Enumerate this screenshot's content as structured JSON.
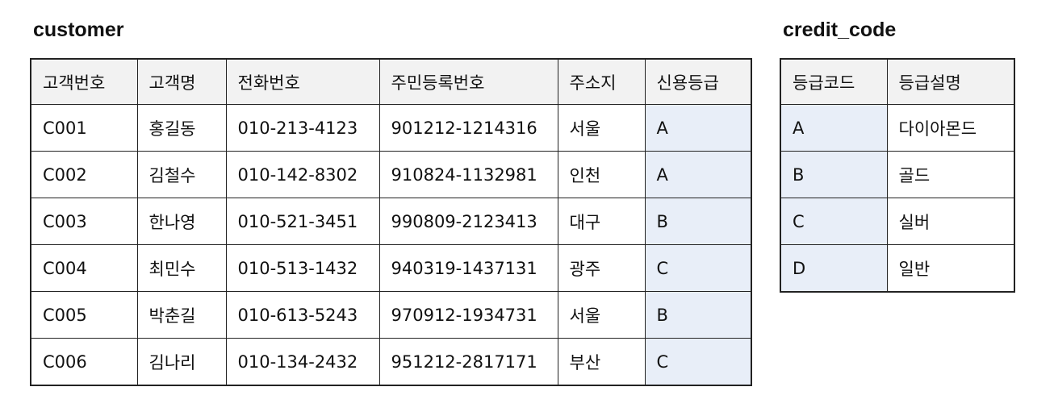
{
  "customer": {
    "title": "customer",
    "columns": [
      "고객번호",
      "고객명",
      "전화번호",
      "주민등록번호",
      "주소지",
      "신용등급"
    ],
    "rows": [
      [
        "C001",
        "홍길동",
        "010-213-4123",
        "901212-1214316",
        "서울",
        "A"
      ],
      [
        "C002",
        "김철수",
        "010-142-8302",
        "910824-1132981",
        "인천",
        "A"
      ],
      [
        "C003",
        "한나영",
        "010-521-3451",
        "990809-2123413",
        "대구",
        "B"
      ],
      [
        "C004",
        "최민수",
        "010-513-1432",
        "940319-1437131",
        "광주",
        "C"
      ],
      [
        "C005",
        "박춘길",
        "010-613-5243",
        "970912-1934731",
        "서울",
        "B"
      ],
      [
        "C006",
        "김나리",
        "010-134-2432",
        "951212-2817171",
        "부산",
        "C"
      ]
    ]
  },
  "credit_code": {
    "title": "credit_code",
    "columns": [
      "등급코드",
      "등급설명"
    ],
    "rows": [
      [
        "A",
        "다이아몬드"
      ],
      [
        "B",
        "골드"
      ],
      [
        "C",
        "실버"
      ],
      [
        "D",
        "일반"
      ]
    ]
  },
  "colors": {
    "highlight": "#e8eef8",
    "header_background": "#f2f2f2",
    "border": "#222222"
  }
}
